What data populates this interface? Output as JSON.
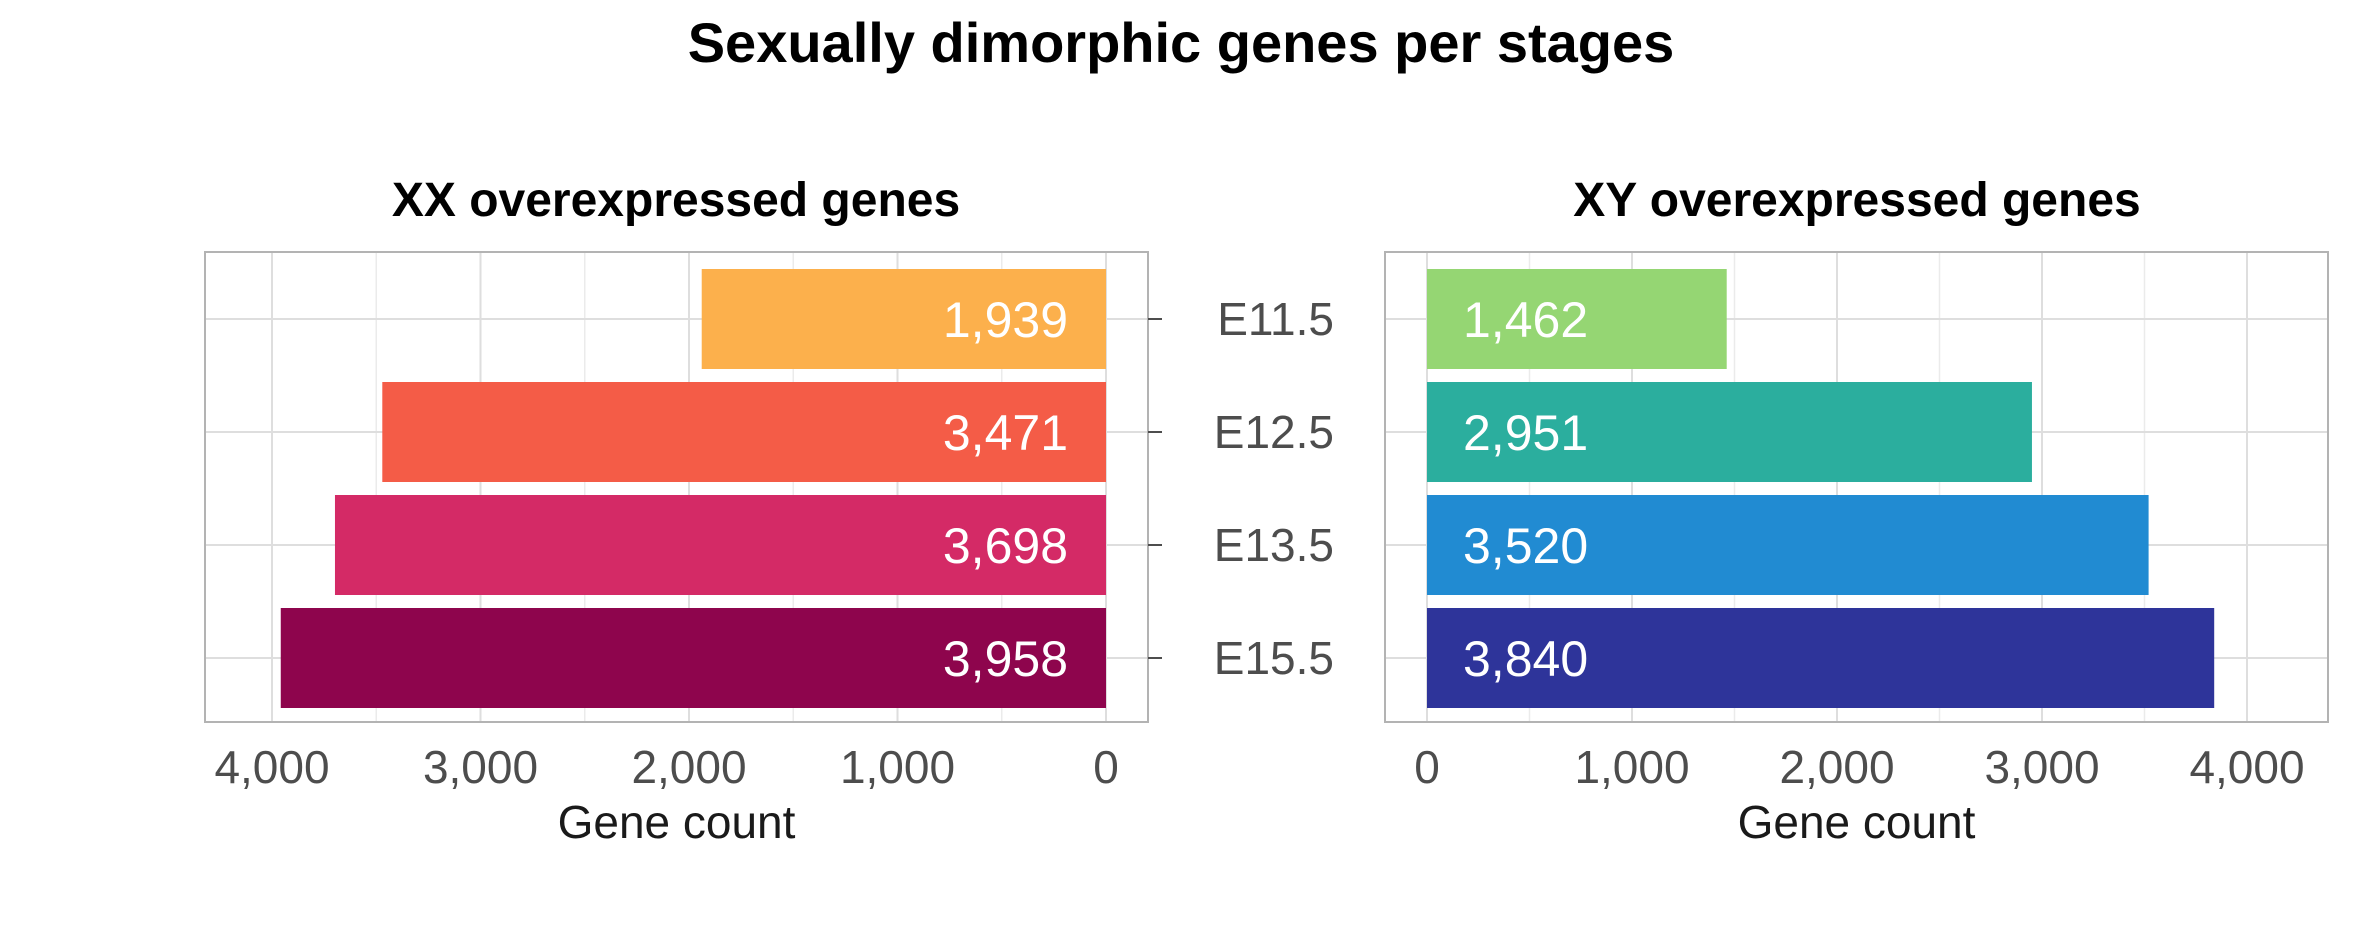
{
  "chart_data": {
    "type": "bar",
    "title": "Sexually dimorphic genes per stages",
    "categories": [
      "E11.5",
      "E12.5",
      "E13.5",
      "E15.5"
    ],
    "panels": [
      {
        "title": "XX overexpressed genes",
        "xlabel": "Gene count",
        "orientation": "horizontal-reversed",
        "xlim": [
          0,
          4300
        ],
        "ticks": [
          4000,
          3000,
          2000,
          1000,
          0
        ],
        "tick_labels": [
          "4,000",
          "3,000",
          "2,000",
          "1,000",
          "0"
        ],
        "values": [
          1939,
          3471,
          3698,
          3958
        ],
        "value_labels": [
          "1,939",
          "3,471",
          "3,698",
          "3,958"
        ],
        "colors": [
          "#FCB04C",
          "#F45C47",
          "#D42A66",
          "#8E054D"
        ]
      },
      {
        "title": "XY overexpressed genes",
        "xlabel": "Gene count",
        "orientation": "horizontal",
        "xlim": [
          0,
          4300
        ],
        "ticks": [
          0,
          1000,
          2000,
          3000,
          4000
        ],
        "tick_labels": [
          "0",
          "1,000",
          "2,000",
          "3,000",
          "4,000"
        ],
        "values": [
          1462,
          2951,
          3520,
          3840
        ],
        "value_labels": [
          "1,462",
          "2,951",
          "3,520",
          "3,840"
        ],
        "colors": [
          "#95D673",
          "#2BAE9E",
          "#218BD2",
          "#2E349A"
        ]
      }
    ],
    "grid": true,
    "legend": "none"
  }
}
